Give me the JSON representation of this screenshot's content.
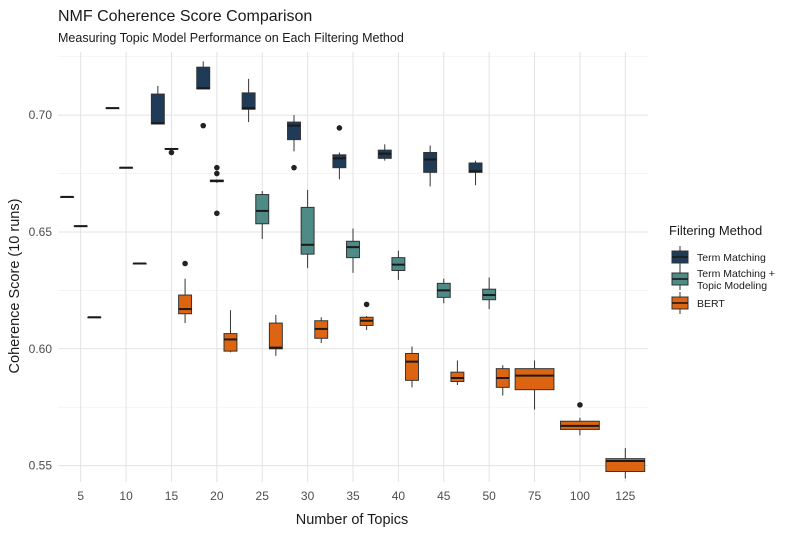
{
  "chart_data": {
    "type": "boxplot",
    "title": "NMF Coherence Score Comparison",
    "subtitle": "Measuring Topic Model Performance on Each Filtering Method",
    "xlabel": "Number of Topics",
    "ylabel": "Coherence Score (10 runs)",
    "categories": [
      "5",
      "10",
      "15",
      "20",
      "25",
      "30",
      "35",
      "40",
      "45",
      "50",
      "75",
      "100",
      "125"
    ],
    "yticks": [
      0.55,
      0.6,
      0.65,
      0.7
    ],
    "ylim": [
      0.543,
      0.727
    ],
    "grid": true,
    "legend": {
      "title": "Filtering Method",
      "position": "right",
      "entries": [
        "Term Matching",
        "Term Matching +\nTopic Modeling",
        "BERT"
      ]
    },
    "series": [
      {
        "name": "Term Matching",
        "color": "#1f3b57",
        "boxes": [
          {
            "x": "5",
            "low": 0.665,
            "q1": 0.665,
            "median": 0.665,
            "q3": 0.665,
            "high": 0.665,
            "outliers": []
          },
          {
            "x": "10",
            "low": 0.703,
            "q1": 0.703,
            "median": 0.703,
            "q3": 0.703,
            "high": 0.703,
            "outliers": []
          },
          {
            "x": "15",
            "low": 0.696,
            "q1": 0.6962,
            "median": 0.6965,
            "q3": 0.709,
            "high": 0.7125,
            "outliers": []
          },
          {
            "x": "20",
            "low": 0.711,
            "q1": 0.7112,
            "median": 0.7115,
            "q3": 0.7205,
            "high": 0.723,
            "outliers": [
              0.6955
            ]
          },
          {
            "x": "25",
            "low": 0.697,
            "q1": 0.7025,
            "median": 0.703,
            "q3": 0.7095,
            "high": 0.7155,
            "outliers": []
          },
          {
            "x": "30",
            "low": 0.6845,
            "q1": 0.6895,
            "median": 0.6955,
            "q3": 0.697,
            "high": 0.7,
            "outliers": [
              0.6775
            ]
          },
          {
            "x": "35",
            "low": 0.6725,
            "q1": 0.6775,
            "median": 0.6815,
            "q3": 0.683,
            "high": 0.684,
            "outliers": [
              0.6945
            ]
          },
          {
            "x": "40",
            "low": 0.6805,
            "q1": 0.6815,
            "median": 0.6835,
            "q3": 0.685,
            "high": 0.6875,
            "outliers": []
          },
          {
            "x": "45",
            "low": 0.6695,
            "q1": 0.6755,
            "median": 0.681,
            "q3": 0.684,
            "high": 0.687,
            "outliers": []
          },
          {
            "x": "50",
            "low": 0.67,
            "q1": 0.6755,
            "median": 0.676,
            "q3": 0.6795,
            "high": 0.6805,
            "outliers": []
          }
        ]
      },
      {
        "name": "Term Matching +\nTopic Modeling",
        "color": "#4e8a86",
        "boxes": [
          {
            "x": "5",
            "low": 0.6525,
            "q1": 0.6525,
            "median": 0.6525,
            "q3": 0.6525,
            "high": 0.6525,
            "outliers": []
          },
          {
            "x": "10",
            "low": 0.6775,
            "q1": 0.6775,
            "median": 0.6775,
            "q3": 0.6775,
            "high": 0.6775,
            "outliers": []
          },
          {
            "x": "15",
            "low": 0.6855,
            "q1": 0.6855,
            "median": 0.6855,
            "q3": 0.6857,
            "high": 0.686,
            "outliers": [
              0.684
            ]
          },
          {
            "x": "20",
            "low": 0.671,
            "q1": 0.6715,
            "median": 0.6718,
            "q3": 0.6722,
            "high": 0.6725,
            "outliers": [
              0.6775,
              0.675,
              0.658
            ]
          },
          {
            "x": "25",
            "low": 0.647,
            "q1": 0.6535,
            "median": 0.659,
            "q3": 0.666,
            "high": 0.6675,
            "outliers": []
          },
          {
            "x": "30",
            "low": 0.6345,
            "q1": 0.6405,
            "median": 0.6445,
            "q3": 0.6605,
            "high": 0.668,
            "outliers": []
          },
          {
            "x": "35",
            "low": 0.6325,
            "q1": 0.639,
            "median": 0.6435,
            "q3": 0.646,
            "high": 0.6515,
            "outliers": []
          },
          {
            "x": "40",
            "low": 0.6295,
            "q1": 0.6335,
            "median": 0.636,
            "q3": 0.639,
            "high": 0.642,
            "outliers": []
          },
          {
            "x": "45",
            "low": 0.6195,
            "q1": 0.622,
            "median": 0.625,
            "q3": 0.628,
            "high": 0.63,
            "outliers": []
          },
          {
            "x": "50",
            "low": 0.617,
            "q1": 0.621,
            "median": 0.623,
            "q3": 0.6255,
            "high": 0.6305,
            "outliers": []
          }
        ]
      },
      {
        "name": "BERT",
        "color": "#dd6511",
        "boxes": [
          {
            "x": "5",
            "low": 0.6135,
            "q1": 0.6135,
            "median": 0.6135,
            "q3": 0.6135,
            "high": 0.6135,
            "outliers": []
          },
          {
            "x": "10",
            "low": 0.6365,
            "q1": 0.6365,
            "median": 0.6365,
            "q3": 0.6365,
            "high": 0.6365,
            "outliers": []
          },
          {
            "x": "15",
            "low": 0.611,
            "q1": 0.615,
            "median": 0.617,
            "q3": 0.623,
            "high": 0.63,
            "outliers": [
              0.6365
            ]
          },
          {
            "x": "20",
            "low": 0.5985,
            "q1": 0.599,
            "median": 0.604,
            "q3": 0.6065,
            "high": 0.6165,
            "outliers": []
          },
          {
            "x": "25",
            "low": 0.597,
            "q1": 0.6,
            "median": 0.6005,
            "q3": 0.611,
            "high": 0.6145,
            "outliers": []
          },
          {
            "x": "30",
            "low": 0.6025,
            "q1": 0.6045,
            "median": 0.6085,
            "q3": 0.612,
            "high": 0.6135,
            "outliers": []
          },
          {
            "x": "35",
            "low": 0.608,
            "q1": 0.61,
            "median": 0.612,
            "q3": 0.6135,
            "high": 0.614,
            "outliers": [
              0.619
            ]
          },
          {
            "x": "40",
            "low": 0.5835,
            "q1": 0.5865,
            "median": 0.5945,
            "q3": 0.598,
            "high": 0.601,
            "outliers": []
          },
          {
            "x": "45",
            "low": 0.5845,
            "q1": 0.586,
            "median": 0.5875,
            "q3": 0.59,
            "high": 0.595,
            "outliers": []
          },
          {
            "x": "50",
            "low": 0.58,
            "q1": 0.5835,
            "median": 0.5875,
            "q3": 0.5915,
            "high": 0.593,
            "outliers": []
          },
          {
            "x": "75",
            "low": 0.574,
            "q1": 0.5825,
            "median": 0.5885,
            "q3": 0.5915,
            "high": 0.595,
            "outliers": []
          },
          {
            "x": "100",
            "low": 0.563,
            "q1": 0.5655,
            "median": 0.567,
            "q3": 0.569,
            "high": 0.5705,
            "outliers": [
              0.576
            ]
          },
          {
            "x": "125",
            "low": 0.5445,
            "q1": 0.5475,
            "median": 0.552,
            "q3": 0.553,
            "high": 0.5575,
            "outliers": []
          }
        ]
      }
    ]
  }
}
